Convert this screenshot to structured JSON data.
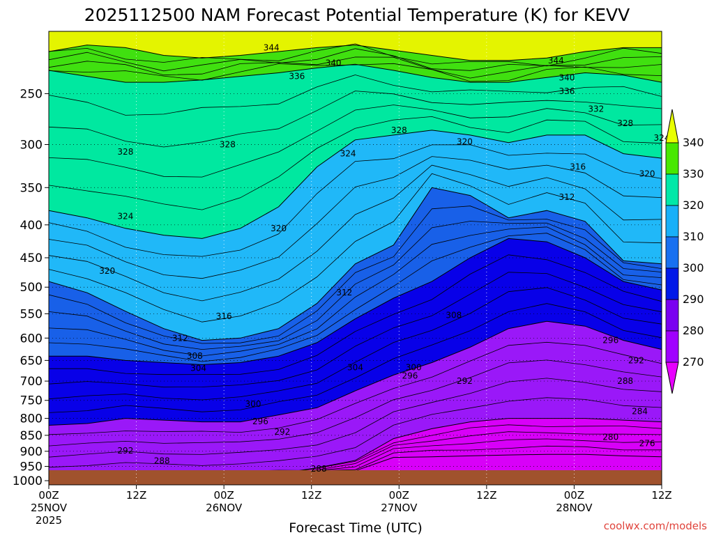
{
  "chart_data": {
    "type": "filled-contour",
    "title": "2025112500 NAM Forecast Potential Temperature (K) for KEVV",
    "xlabel": "Forecast Time (UTC)",
    "ylabel": "",
    "credit": "coolwx.com/models",
    "x_ticks": [
      {
        "hour": 0,
        "label": "00Z",
        "date": "25NOV",
        "year": "2025"
      },
      {
        "hour": 12,
        "label": "12Z",
        "date": "",
        "year": ""
      },
      {
        "hour": 24,
        "label": "00Z",
        "date": "26NOV",
        "year": ""
      },
      {
        "hour": 36,
        "label": "12Z",
        "date": "",
        "year": ""
      },
      {
        "hour": 48,
        "label": "00Z",
        "date": "27NOV",
        "year": ""
      },
      {
        "hour": 60,
        "label": "12Z",
        "date": "",
        "year": ""
      },
      {
        "hour": 72,
        "label": "00Z",
        "date": "28NOV",
        "year": ""
      },
      {
        "hour": 84,
        "label": "12Z",
        "date": "",
        "year": ""
      }
    ],
    "xlim": [
      0,
      84
    ],
    "y_ticks": [
      250,
      300,
      350,
      400,
      450,
      500,
      550,
      600,
      650,
      700,
      750,
      800,
      850,
      900,
      950,
      1000
    ],
    "ylim": [
      200,
      1015
    ],
    "colorbar": {
      "levels": [
        270,
        280,
        290,
        300,
        310,
        320,
        330,
        340
      ],
      "colors": [
        "#e800ff",
        "#a000ff",
        "#7a00f0",
        "#0018e8",
        "#1870f0",
        "#18b0f8",
        "#00e8a8",
        "#48e800",
        "#e8ff00"
      ]
    },
    "fill_colors": {
      "t270": "#d800f8",
      "t280": "#9a18f8",
      "t290": "#0800e8",
      "t300": "#1860e8",
      "t310": "#20b8f8",
      "t320": "#00e8a0",
      "t330": "#40e010",
      "t340": "#e4f400",
      "ground": "#a0522d"
    },
    "bands": [
      {
        "level": 270,
        "pres": [
          965,
          965,
          965,
          965,
          965,
          965,
          965,
          965,
          965,
          920,
          918,
          915,
          912,
          910,
          910,
          915,
          918
        ]
      },
      {
        "level": 280,
        "pres": [
          985,
          982,
          980,
          980,
          980,
          978,
          975,
          955,
          930,
          860,
          830,
          810,
          800,
          800,
          800,
          805,
          810
        ]
      },
      {
        "level": 290,
        "pres": [
          820,
          815,
          800,
          805,
          810,
          810,
          790,
          770,
          725,
          685,
          655,
          620,
          580,
          565,
          575,
          605,
          625
        ]
      },
      {
        "level": 300,
        "pres": [
          640,
          640,
          650,
          655,
          660,
          655,
          640,
          610,
          560,
          520,
          490,
          450,
          420,
          425,
          450,
          490,
          505
        ]
      },
      {
        "level": 310,
        "pres": [
          490,
          510,
          545,
          580,
          605,
          600,
          580,
          530,
          460,
          430,
          350,
          360,
          390,
          380,
          395,
          455,
          460
        ]
      },
      {
        "level": 320,
        "pres": [
          380,
          390,
          405,
          415,
          420,
          405,
          375,
          325,
          295,
          290,
          285,
          290,
          298,
          290,
          290,
          310,
          315
        ]
      },
      {
        "level": 330,
        "pres": [
          230,
          235,
          240,
          240,
          238,
          235,
          232,
          228,
          225,
          230,
          236,
          240,
          240,
          236,
          232,
          234,
          240
        ]
      },
      {
        "level": 340,
        "pres": [
          215,
          210,
          212,
          218,
          220,
          218,
          215,
          212,
          210,
          214,
          218,
          222,
          222,
          220,
          215,
          212,
          212
        ]
      }
    ],
    "contour_labels": [
      {
        "text": "344",
        "hour": 30.5,
        "pres": 212
      },
      {
        "text": "340",
        "hour": 39,
        "pres": 224
      },
      {
        "text": "336",
        "hour": 34,
        "pres": 235
      },
      {
        "text": "344",
        "hour": 69.5,
        "pres": 222
      },
      {
        "text": "340",
        "hour": 71,
        "pres": 236
      },
      {
        "text": "336",
        "hour": 71,
        "pres": 248
      },
      {
        "text": "332",
        "hour": 75,
        "pres": 264
      },
      {
        "text": "328",
        "hour": 79,
        "pres": 278
      },
      {
        "text": "324",
        "hour": 84,
        "pres": 293
      },
      {
        "text": "328",
        "hour": 10.5,
        "pres": 308
      },
      {
        "text": "328",
        "hour": 24.5,
        "pres": 300
      },
      {
        "text": "328",
        "hour": 48,
        "pres": 285
      },
      {
        "text": "324",
        "hour": 41,
        "pres": 310
      },
      {
        "text": "320",
        "hour": 57,
        "pres": 297
      },
      {
        "text": "316",
        "hour": 72.5,
        "pres": 325
      },
      {
        "text": "320",
        "hour": 82,
        "pres": 333
      },
      {
        "text": "312",
        "hour": 71,
        "pres": 362
      },
      {
        "text": "324",
        "hour": 10.5,
        "pres": 388
      },
      {
        "text": "320",
        "hour": 31.5,
        "pres": 405
      },
      {
        "text": "320",
        "hour": 8,
        "pres": 472
      },
      {
        "text": "312",
        "hour": 40.5,
        "pres": 510
      },
      {
        "text": "316",
        "hour": 24,
        "pres": 555
      },
      {
        "text": "308",
        "hour": 55.5,
        "pres": 553
      },
      {
        "text": "312",
        "hour": 18,
        "pres": 600
      },
      {
        "text": "296",
        "hour": 77,
        "pres": 605
      },
      {
        "text": "308",
        "hour": 20,
        "pres": 640
      },
      {
        "text": "292",
        "hour": 80.5,
        "pres": 650
      },
      {
        "text": "304",
        "hour": 20.5,
        "pres": 668
      },
      {
        "text": "304",
        "hour": 42,
        "pres": 667
      },
      {
        "text": "300",
        "hour": 50,
        "pres": 667
      },
      {
        "text": "296",
        "hour": 49.5,
        "pres": 687
      },
      {
        "text": "292",
        "hour": 57,
        "pres": 700
      },
      {
        "text": "288",
        "hour": 79,
        "pres": 700
      },
      {
        "text": "300",
        "hour": 28,
        "pres": 760
      },
      {
        "text": "284",
        "hour": 81,
        "pres": 780
      },
      {
        "text": "296",
        "hour": 29,
        "pres": 809
      },
      {
        "text": "292",
        "hour": 32,
        "pres": 840
      },
      {
        "text": "280",
        "hour": 77,
        "pres": 856
      },
      {
        "text": "276",
        "hour": 82,
        "pres": 875
      },
      {
        "text": "292",
        "hour": 10.5,
        "pres": 898
      },
      {
        "text": "288",
        "hour": 15.5,
        "pres": 931
      },
      {
        "text": "288",
        "hour": 37,
        "pres": 958
      }
    ]
  }
}
